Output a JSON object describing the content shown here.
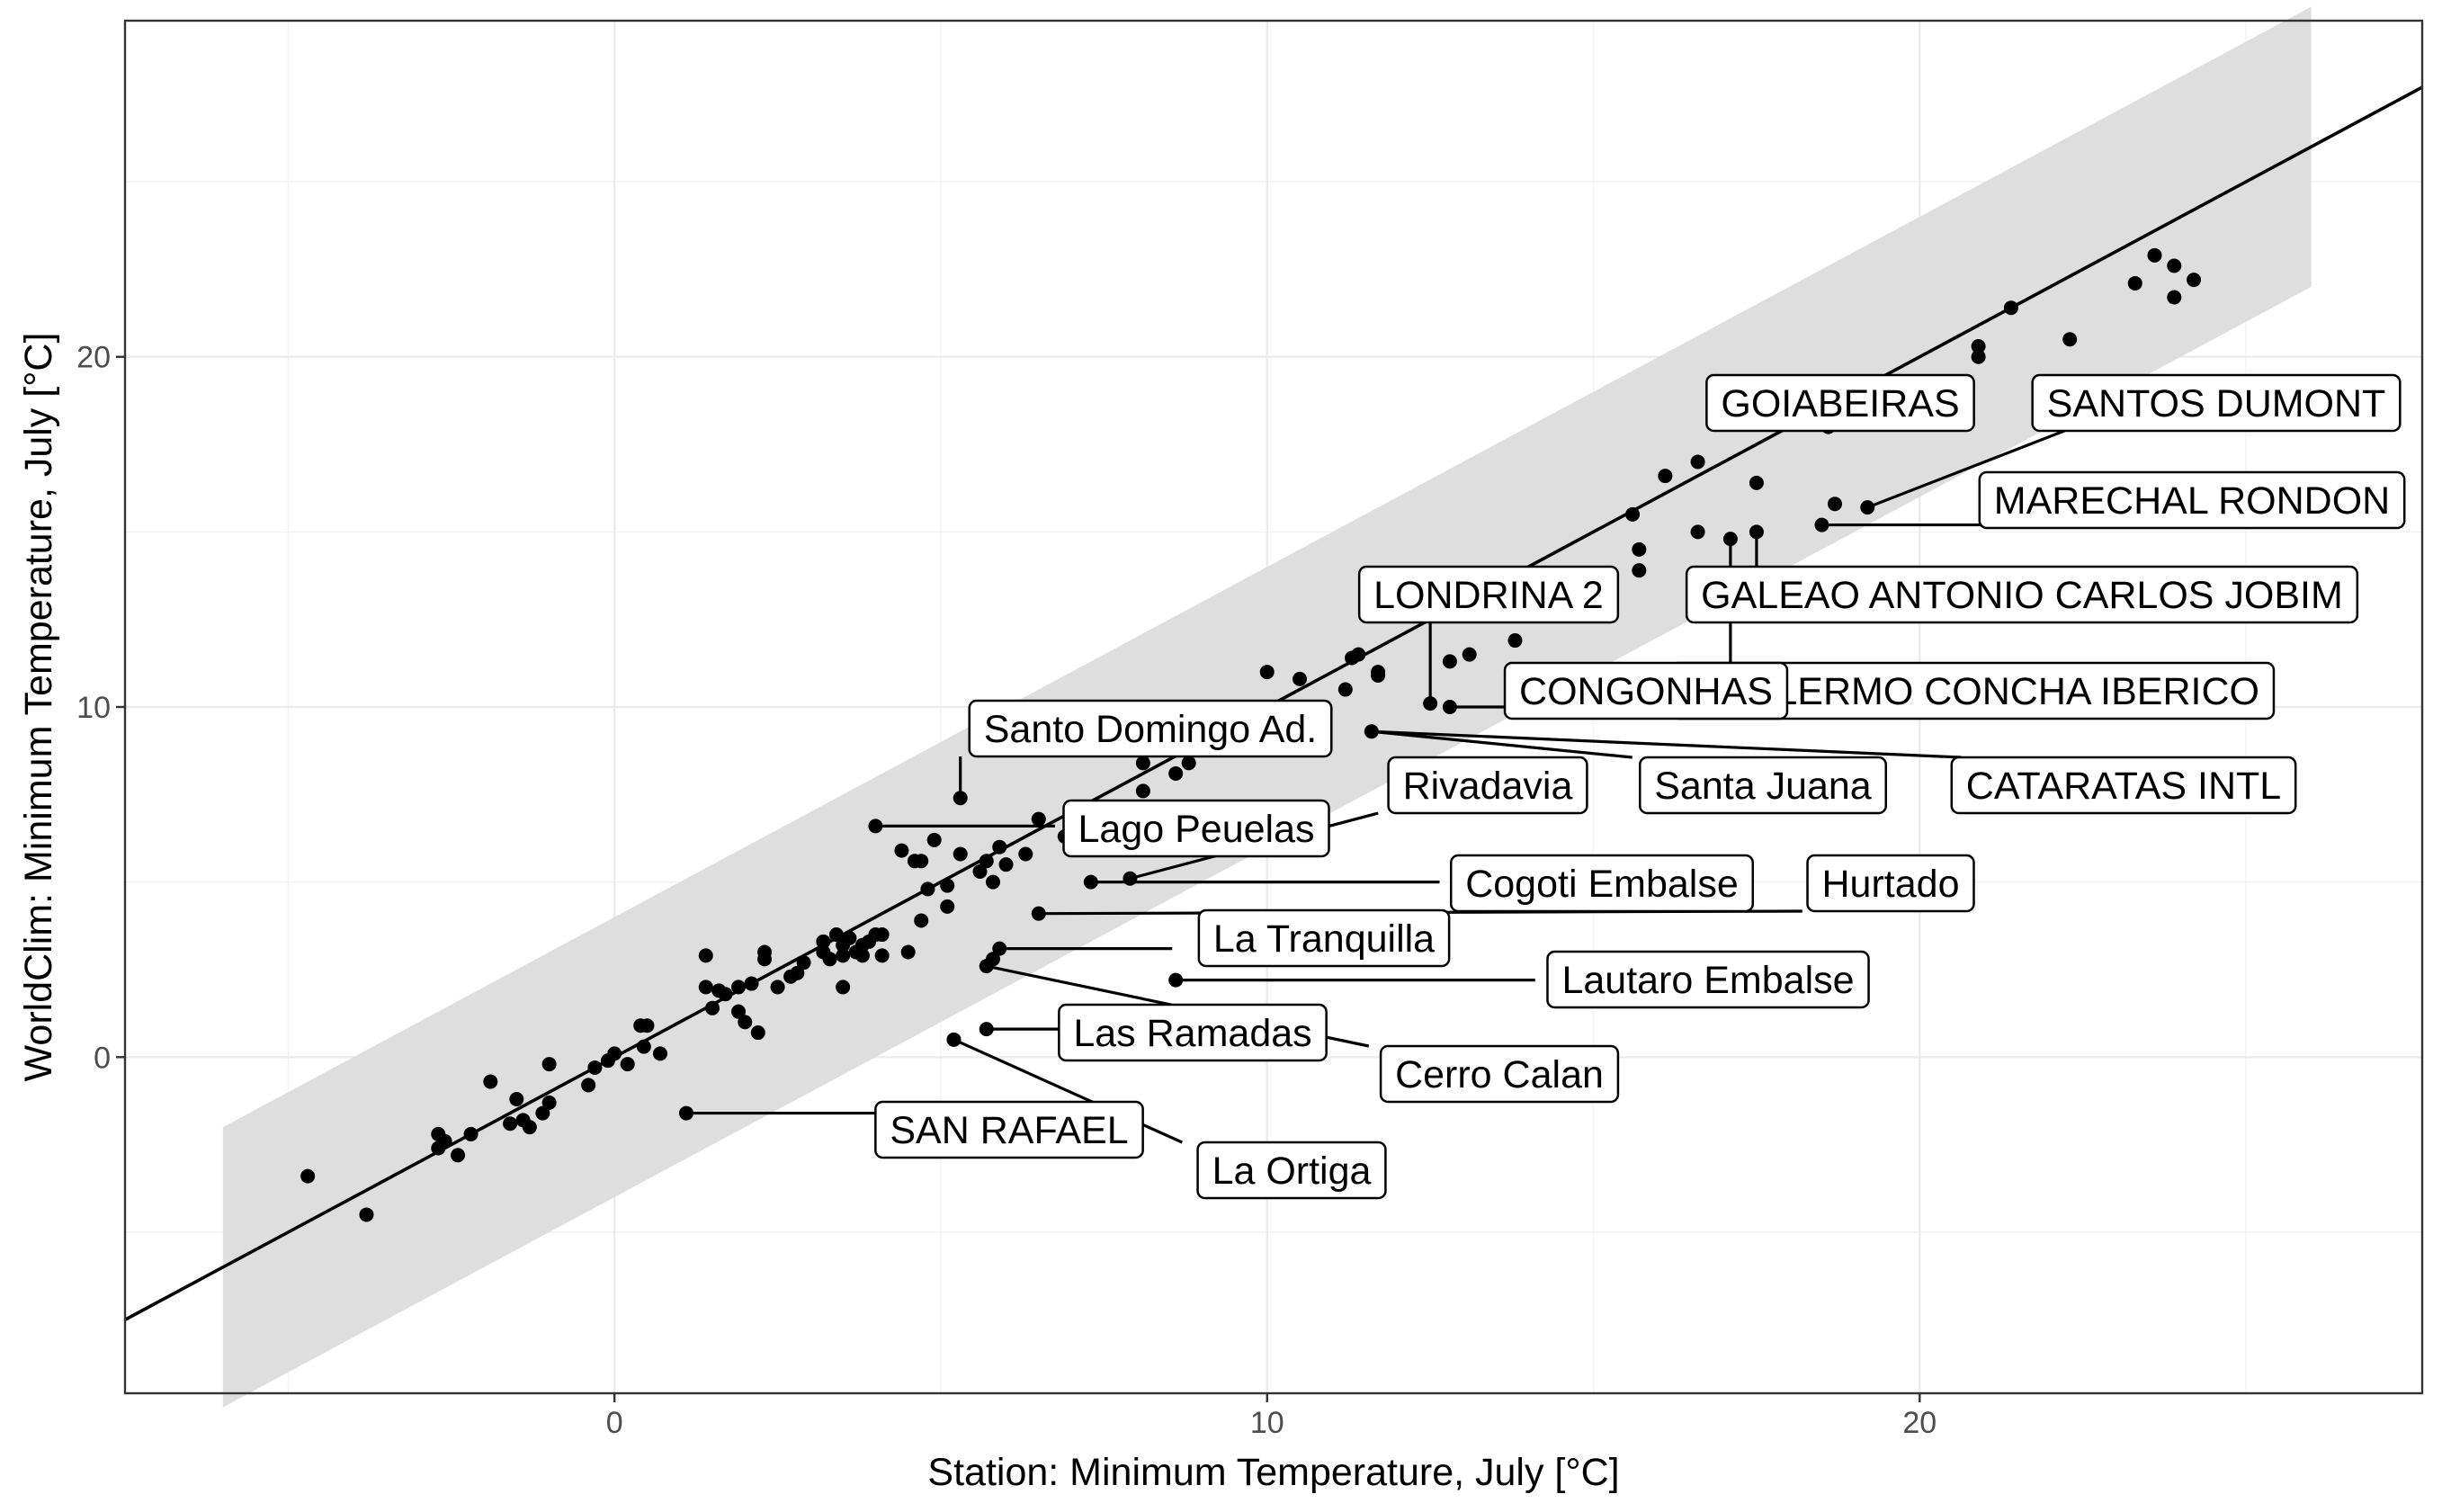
{
  "chart_data": {
    "type": "scatter",
    "xlabel": "Station: Minimum Temperature, July [°C]",
    "ylabel": "WorldClim: Minimum Temperature, July [°C]",
    "xlim": [
      -7.5,
      27.7
    ],
    "ylim": [
      -9.6,
      29.6
    ],
    "x_ticks": [
      0,
      10,
      20
    ],
    "y_ticks": [
      0,
      10,
      20
    ],
    "x_tick_labels": [
      "0",
      "10",
      "20"
    ],
    "y_tick_labels": [
      "0",
      "10",
      "20"
    ],
    "grid": true,
    "fit_line": {
      "slope": 1.0,
      "intercept": 0.0
    },
    "band": {
      "x_range": [
        -6.0,
        26.0
      ],
      "half_width": 4.0
    },
    "points": [
      {
        "x": -4.7,
        "y": -3.4
      },
      {
        "x": -3.8,
        "y": -4.5
      },
      {
        "x": -2.7,
        "y": -2.2
      },
      {
        "x": -2.7,
        "y": -2.6
      },
      {
        "x": -2.6,
        "y": -2.4
      },
      {
        "x": -2.4,
        "y": -2.8
      },
      {
        "x": -2.2,
        "y": -2.2
      },
      {
        "x": -1.9,
        "y": -0.7
      },
      {
        "x": -1.6,
        "y": -1.9
      },
      {
        "x": -1.5,
        "y": -1.2
      },
      {
        "x": -1.4,
        "y": -1.8
      },
      {
        "x": -1.3,
        "y": -2.0
      },
      {
        "x": -1.1,
        "y": -1.6
      },
      {
        "x": -1.0,
        "y": -1.3
      },
      {
        "x": -1.0,
        "y": -0.2
      },
      {
        "x": -0.4,
        "y": -0.8
      },
      {
        "x": -0.3,
        "y": -0.3
      },
      {
        "x": -0.1,
        "y": -0.1
      },
      {
        "x": 0.0,
        "y": 0.1
      },
      {
        "x": 0.2,
        "y": -0.2
      },
      {
        "x": 0.4,
        "y": 0.9
      },
      {
        "x": 0.45,
        "y": 0.3
      },
      {
        "x": 0.5,
        "y": 0.9
      },
      {
        "x": 0.7,
        "y": 0.1
      },
      {
        "x": 1.4,
        "y": 2.9
      },
      {
        "x": 1.4,
        "y": 2.0
      },
      {
        "x": 1.5,
        "y": 1.4
      },
      {
        "x": 1.6,
        "y": 1.9
      },
      {
        "x": 1.7,
        "y": 1.8
      },
      {
        "x": 1.9,
        "y": 2.0
      },
      {
        "x": 1.9,
        "y": 1.3
      },
      {
        "x": 2.0,
        "y": 1.0
      },
      {
        "x": 2.1,
        "y": 2.1
      },
      {
        "x": 2.2,
        "y": 0.7
      },
      {
        "x": 2.3,
        "y": 2.8
      },
      {
        "x": 2.3,
        "y": 3.0
      },
      {
        "x": 2.5,
        "y": 2.0
      },
      {
        "x": 2.7,
        "y": 2.3
      },
      {
        "x": 2.8,
        "y": 2.4
      },
      {
        "x": 2.9,
        "y": 2.7
      },
      {
        "x": 3.2,
        "y": 3.0
      },
      {
        "x": 3.2,
        "y": 3.3
      },
      {
        "x": 3.3,
        "y": 2.8
      },
      {
        "x": 3.4,
        "y": 3.5
      },
      {
        "x": 3.5,
        "y": 2.9
      },
      {
        "x": 3.5,
        "y": 3.2
      },
      {
        "x": 3.5,
        "y": 2.0
      },
      {
        "x": 3.6,
        "y": 3.4
      },
      {
        "x": 3.7,
        "y": 3.0
      },
      {
        "x": 3.8,
        "y": 3.2
      },
      {
        "x": 3.8,
        "y": 2.9
      },
      {
        "x": 3.9,
        "y": 3.3
      },
      {
        "x": 4.0,
        "y": 3.5
      },
      {
        "x": 4.1,
        "y": 3.5
      },
      {
        "x": 4.1,
        "y": 2.9
      },
      {
        "x": 4.4,
        "y": 5.9
      },
      {
        "x": 4.5,
        "y": 3.0
      },
      {
        "x": 4.6,
        "y": 5.6
      },
      {
        "x": 4.7,
        "y": 3.9
      },
      {
        "x": 4.7,
        "y": 5.6
      },
      {
        "x": 4.8,
        "y": 4.8
      },
      {
        "x": 4.9,
        "y": 6.2
      },
      {
        "x": 5.1,
        "y": 4.9
      },
      {
        "x": 5.1,
        "y": 4.3
      },
      {
        "x": 5.3,
        "y": 5.8
      },
      {
        "x": 5.6,
        "y": 5.3
      },
      {
        "x": 5.7,
        "y": 5.6
      },
      {
        "x": 5.8,
        "y": 5.0
      },
      {
        "x": 5.9,
        "y": 6.0
      },
      {
        "x": 6.0,
        "y": 5.5
      },
      {
        "x": 6.3,
        "y": 5.8
      },
      {
        "x": 6.5,
        "y": 6.8
      },
      {
        "x": 6.9,
        "y": 6.3
      },
      {
        "x": 7.1,
        "y": 6.6
      },
      {
        "x": 8.1,
        "y": 7.6
      },
      {
        "x": 8.1,
        "y": 8.4
      },
      {
        "x": 8.6,
        "y": 8.1
      },
      {
        "x": 8.8,
        "y": 8.4
      },
      {
        "x": 10.0,
        "y": 11.0
      },
      {
        "x": 10.5,
        "y": 10.8
      },
      {
        "x": 11.2,
        "y": 10.5
      },
      {
        "x": 11.3,
        "y": 11.4
      },
      {
        "x": 11.4,
        "y": 11.5
      },
      {
        "x": 11.7,
        "y": 11.0
      },
      {
        "x": 11.7,
        "y": 10.9
      },
      {
        "x": 12.8,
        "y": 11.3
      },
      {
        "x": 13.1,
        "y": 11.5
      },
      {
        "x": 13.8,
        "y": 11.9
      },
      {
        "x": 15.6,
        "y": 15.5
      },
      {
        "x": 15.7,
        "y": 14.5
      },
      {
        "x": 15.7,
        "y": 13.9
      },
      {
        "x": 16.1,
        "y": 16.6
      },
      {
        "x": 16.6,
        "y": 17.0
      },
      {
        "x": 16.6,
        "y": 15.0
      },
      {
        "x": 17.5,
        "y": 16.4
      },
      {
        "x": 20.9,
        "y": 20.0
      },
      {
        "x": 20.9,
        "y": 20.3
      },
      {
        "x": 21.4,
        "y": 21.4
      },
      {
        "x": 22.3,
        "y": 20.5
      },
      {
        "x": 23.3,
        "y": 22.1
      },
      {
        "x": 23.6,
        "y": 22.9
      },
      {
        "x": 23.9,
        "y": 22.6
      },
      {
        "x": 23.9,
        "y": 21.7
      },
      {
        "x": 24.2,
        "y": 22.2
      },
      {
        "x": 18.6,
        "y": 18.0
      },
      {
        "x": 19.2,
        "y": 15.7
      },
      {
        "x": 18.7,
        "y": 15.8
      },
      {
        "x": 18.5,
        "y": 15.2
      },
      {
        "x": 17.5,
        "y": 15.0
      },
      {
        "x": 17.1,
        "y": 14.8
      },
      {
        "x": 12.5,
        "y": 10.1
      },
      {
        "x": 12.8,
        "y": 10.0
      },
      {
        "x": 5.3,
        "y": 7.4
      },
      {
        "x": 11.6,
        "y": 9.3
      },
      {
        "x": 4.0,
        "y": 6.6
      },
      {
        "x": 7.9,
        "y": 5.1
      },
      {
        "x": 7.3,
        "y": 5.0
      },
      {
        "x": 6.5,
        "y": 4.1
      },
      {
        "x": 5.9,
        "y": 3.1
      },
      {
        "x": 5.8,
        "y": 2.8
      },
      {
        "x": 5.7,
        "y": 2.6
      },
      {
        "x": 8.6,
        "y": 2.2
      },
      {
        "x": 5.7,
        "y": 0.8
      },
      {
        "x": 5.2,
        "y": 0.5
      },
      {
        "x": 1.1,
        "y": -1.6
      }
    ],
    "labeled_points": [
      {
        "name": "GOIABEIRAS",
        "x": 18.6,
        "y": 18.0
      },
      {
        "name": "SANTOS DUMONT",
        "x": 19.2,
        "y": 15.7
      },
      {
        "name": "MARECHAL RONDON",
        "x": 18.5,
        "y": 15.2
      },
      {
        "name": "LONDRINA 2",
        "x": 12.5,
        "y": 10.1
      },
      {
        "name": "GALEAO ANTONIO CARLOS JOBIM",
        "x": 17.5,
        "y": 15.0
      },
      {
        "name": "GUILLERMO CONCHA IBERICO",
        "x": 17.1,
        "y": 14.8
      },
      {
        "name": "CONGONHAS",
        "x": 12.8,
        "y": 10.0
      },
      {
        "name": "Santo Domingo Ad.",
        "x": 5.3,
        "y": 7.4
      },
      {
        "name": "CATARATAS INTL",
        "x": 11.6,
        "y": 9.3
      },
      {
        "name": "Santa Juana",
        "x": 11.6,
        "y": 9.3
      },
      {
        "name": "Rivadavia",
        "x": 7.9,
        "y": 5.1
      },
      {
        "name": "Lago Peuelas",
        "x": 4.0,
        "y": 6.6
      },
      {
        "name": "Hurtado",
        "x": 6.5,
        "y": 4.1
      },
      {
        "name": "Cogoti Embalse",
        "x": 7.3,
        "y": 5.0
      },
      {
        "name": "La Tranquilla",
        "x": 5.9,
        "y": 3.1
      },
      {
        "name": "Lautaro Embalse",
        "x": 8.6,
        "y": 2.2
      },
      {
        "name": "Las Ramadas",
        "x": 5.7,
        "y": 0.8
      },
      {
        "name": "Cerro Calan",
        "x": 5.7,
        "y": 2.6
      },
      {
        "name": "SAN RAFAEL",
        "x": 1.1,
        "y": -1.6
      },
      {
        "name": "La Ortiga",
        "x": 5.2,
        "y": 0.5
      }
    ]
  }
}
